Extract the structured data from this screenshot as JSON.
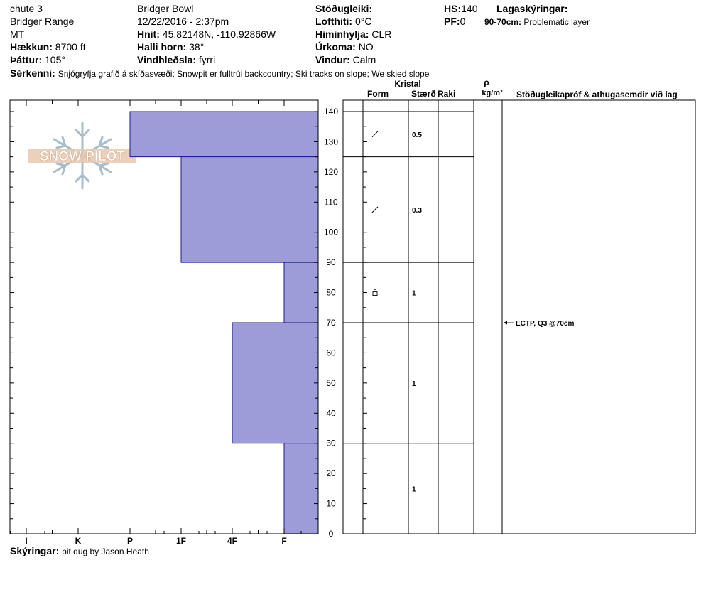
{
  "header": {
    "location": "chute 3",
    "range": "Bridger Range",
    "state": "MT",
    "elevation_label": "Hækkun:",
    "elevation_value": "8700 ft",
    "aspect_label": "Þáttur:",
    "aspect_value": "105°",
    "observer_area": "Bridger Bowl",
    "datetime": "12/22/2016 - 2:37pm",
    "coords_label": "Hnit:",
    "coords_value": "45.82148N, -110.92866W",
    "slope_label": "Halli horn:",
    "slope_value": "38°",
    "wind_loading_label": "Vindhleðsla:",
    "wind_loading_value": "fyrri",
    "stability_label": "Stöðugleiki:",
    "air_temp_label": "Lofthiti:",
    "air_temp_value": "0°C",
    "sky_label": "Himinhylja:",
    "sky_value": "CLR",
    "precip_label": "Úrkoma:",
    "precip_value": "NO",
    "wind_label": "Vindur:",
    "wind_value": "Calm",
    "hs_label": "HS:",
    "hs_value": "140",
    "pf_label": "PF:",
    "pf_value": "0",
    "legend_label": "Lagaskýringar:",
    "legend_range": "90-70cm:",
    "legend_text": "Problematic layer",
    "features_label": "Sérkenni:",
    "features_value": "Snjógryfja grafið á skíðasvæði;  Snowpit er fulltrúi backcountry;  Ski tracks on slope;  We skied slope"
  },
  "footer": {
    "notes_label": "Skýringar:",
    "notes_value": "pit dug by Jason Heath"
  },
  "logo_text": "SNOW PILOT",
  "columns": {
    "crystal": "Kristal",
    "form": "Form",
    "size": "Stærð",
    "moisture": "Raki",
    "rho": "ρ",
    "density_unit": "kg/m³",
    "tests": "Stöðugleikapróf & athugasemdir við lag"
  },
  "colors": {
    "hardness_fill": "#9d9bd8",
    "hardness_stroke": "#1a1a8c"
  },
  "chart_data": {
    "type": "bar",
    "orientation": "horizontal",
    "y_axis": "depth_cm",
    "ylim": [
      0,
      140
    ],
    "y_ticks": [
      0,
      10,
      20,
      30,
      40,
      50,
      60,
      70,
      80,
      90,
      100,
      110,
      120,
      130,
      140
    ],
    "hardness_scale": [
      "I",
      "K",
      "P",
      "1F",
      "4F",
      "F"
    ],
    "layers": [
      {
        "top": 140,
        "bottom": 125,
        "hardness": "P",
        "grain_form": "slash",
        "grain_size": "0.5"
      },
      {
        "top": 125,
        "bottom": 90,
        "hardness": "1F",
        "grain_form": "slash",
        "grain_size": "0.3"
      },
      {
        "top": 90,
        "bottom": 70,
        "hardness": "F",
        "grain_form": "lock",
        "grain_size": "1"
      },
      {
        "top": 70,
        "bottom": 30,
        "hardness": "4F",
        "grain_form": "",
        "grain_size": "1"
      },
      {
        "top": 30,
        "bottom": 0,
        "hardness": "F",
        "grain_form": "",
        "grain_size": "1"
      }
    ],
    "tests": [
      {
        "depth": 70,
        "text": "ECTP, Q3 @70cm"
      }
    ]
  }
}
